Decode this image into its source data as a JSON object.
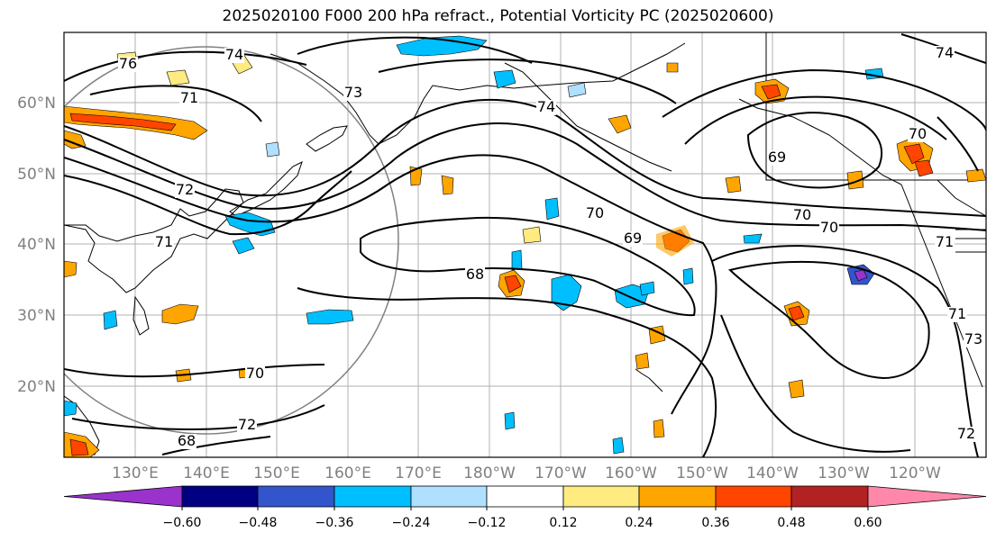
{
  "title": "2025020100 F000 200 hPa refract., Potential Vorticity PC (2025020600)",
  "lat_labels": [
    "60°N",
    "50°N",
    "40°N",
    "30°N",
    "20°N"
  ],
  "lon_labels": [
    "130°E",
    "140°E",
    "150°E",
    "160°E",
    "170°E",
    "180°W",
    "170°W",
    "160°W",
    "150°W",
    "140°W",
    "130°W",
    "120°W"
  ],
  "colorbar": {
    "colors": [
      "#9933cc",
      "#000080",
      "#3355cc",
      "#00bfff",
      "#b0e0ff",
      "#ffffff",
      "#ffeb80",
      "#ffa500",
      "#ff4500",
      "#b22222",
      "#ff88aa"
    ],
    "tick_labels": [
      "−0.60",
      "−0.48",
      "−0.36",
      "−0.24",
      "−0.12",
      "0.12",
      "0.24",
      "0.36",
      "0.48",
      "0.60"
    ]
  },
  "contour_labels": [
    "76",
    "74",
    "71",
    "73",
    "74",
    "72",
    "71",
    "70",
    "69",
    "68",
    "70",
    "72",
    "68",
    "69",
    "70",
    "70",
    "70",
    "71",
    "71",
    "73",
    "72",
    "74"
  ]
}
